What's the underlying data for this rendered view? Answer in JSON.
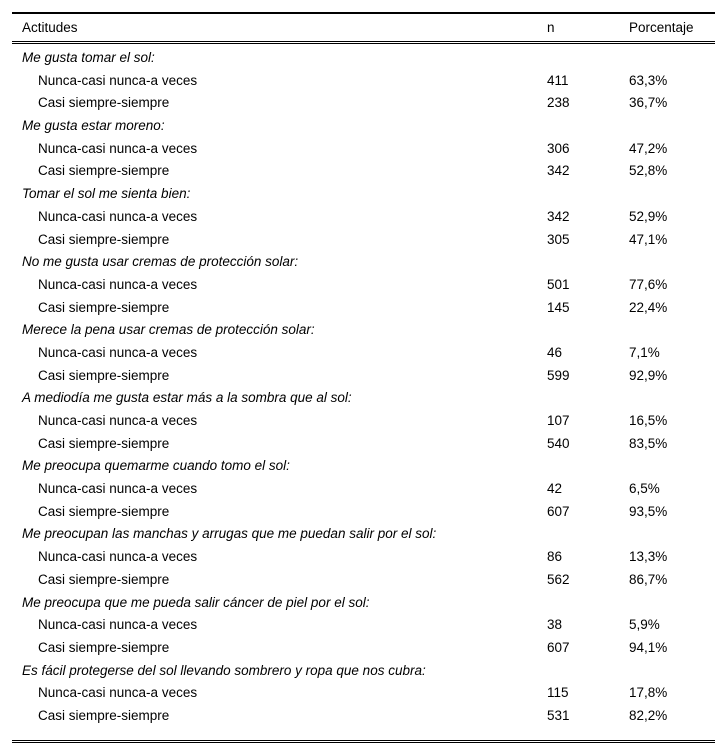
{
  "table": {
    "headers": {
      "attitude": "Actitudes",
      "n": "n",
      "percentage": "Porcentaje"
    },
    "groups": [
      {
        "title": "Me gusta tomar el sol:",
        "rows": [
          {
            "label": "Nunca-casi nunca-a veces",
            "n": "411",
            "pct": "63,3%"
          },
          {
            "label": "Casi siempre-siempre",
            "n": "238",
            "pct": "36,7%"
          }
        ]
      },
      {
        "title": "Me gusta estar moreno:",
        "rows": [
          {
            "label": "Nunca-casi nunca-a veces",
            "n": "306",
            "pct": "47,2%"
          },
          {
            "label": "Casi siempre-siempre",
            "n": "342",
            "pct": "52,8%"
          }
        ]
      },
      {
        "title": "Tomar el sol me sienta bien:",
        "rows": [
          {
            "label": "Nunca-casi nunca-a veces",
            "n": "342",
            "pct": "52,9%"
          },
          {
            "label": "Casi siempre-siempre",
            "n": "305",
            "pct": "47,1%"
          }
        ]
      },
      {
        "title": "No me gusta usar cremas de protección solar:",
        "rows": [
          {
            "label": "Nunca-casi nunca-a veces",
            "n": "501",
            "pct": "77,6%"
          },
          {
            "label": "Casi siempre-siempre",
            "n": "145",
            "pct": "22,4%"
          }
        ]
      },
      {
        "title": "Merece la pena usar cremas de protección solar:",
        "rows": [
          {
            "label": "Nunca-casi nunca-a veces",
            "n": "46",
            "pct": "7,1%"
          },
          {
            "label": "Casi siempre-siempre",
            "n": "599",
            "pct": "92,9%"
          }
        ]
      },
      {
        "title": "A mediodía me gusta estar más a la sombra que al sol:",
        "rows": [
          {
            "label": "Nunca-casi nunca-a veces",
            "n": "107",
            "pct": "16,5%"
          },
          {
            "label": "Casi siempre-siempre",
            "n": "540",
            "pct": "83,5%"
          }
        ]
      },
      {
        "title": "Me preocupa quemarme cuando tomo el sol:",
        "rows": [
          {
            "label": "Nunca-casi nunca-a veces",
            "n": "42",
            "pct": "6,5%"
          },
          {
            "label": "Casi siempre-siempre",
            "n": "607",
            "pct": "93,5%"
          }
        ]
      },
      {
        "title": "Me preocupan las manchas y arrugas que me puedan salir por el sol:",
        "rows": [
          {
            "label": "Nunca-casi nunca-a veces",
            "n": "86",
            "pct": "13,3%"
          },
          {
            "label": "Casi siempre-siempre",
            "n": "562",
            "pct": "86,7%"
          }
        ]
      },
      {
        "title": "Me preocupa que me pueda salir cáncer de piel por el sol:",
        "rows": [
          {
            "label": "Nunca-casi nunca-a veces",
            "n": "38",
            "pct": "5,9%"
          },
          {
            "label": "Casi siempre-siempre",
            "n": "607",
            "pct": "94,1%"
          }
        ]
      },
      {
        "title": "Es fácil protegerse del sol llevando sombrero y ropa que nos cubra:",
        "rows": [
          {
            "label": "Nunca-casi nunca-a veces",
            "n": "115",
            "pct": "17,8%"
          },
          {
            "label": "Casi siempre-siempre",
            "n": "531",
            "pct": "82,2%"
          }
        ]
      }
    ]
  }
}
